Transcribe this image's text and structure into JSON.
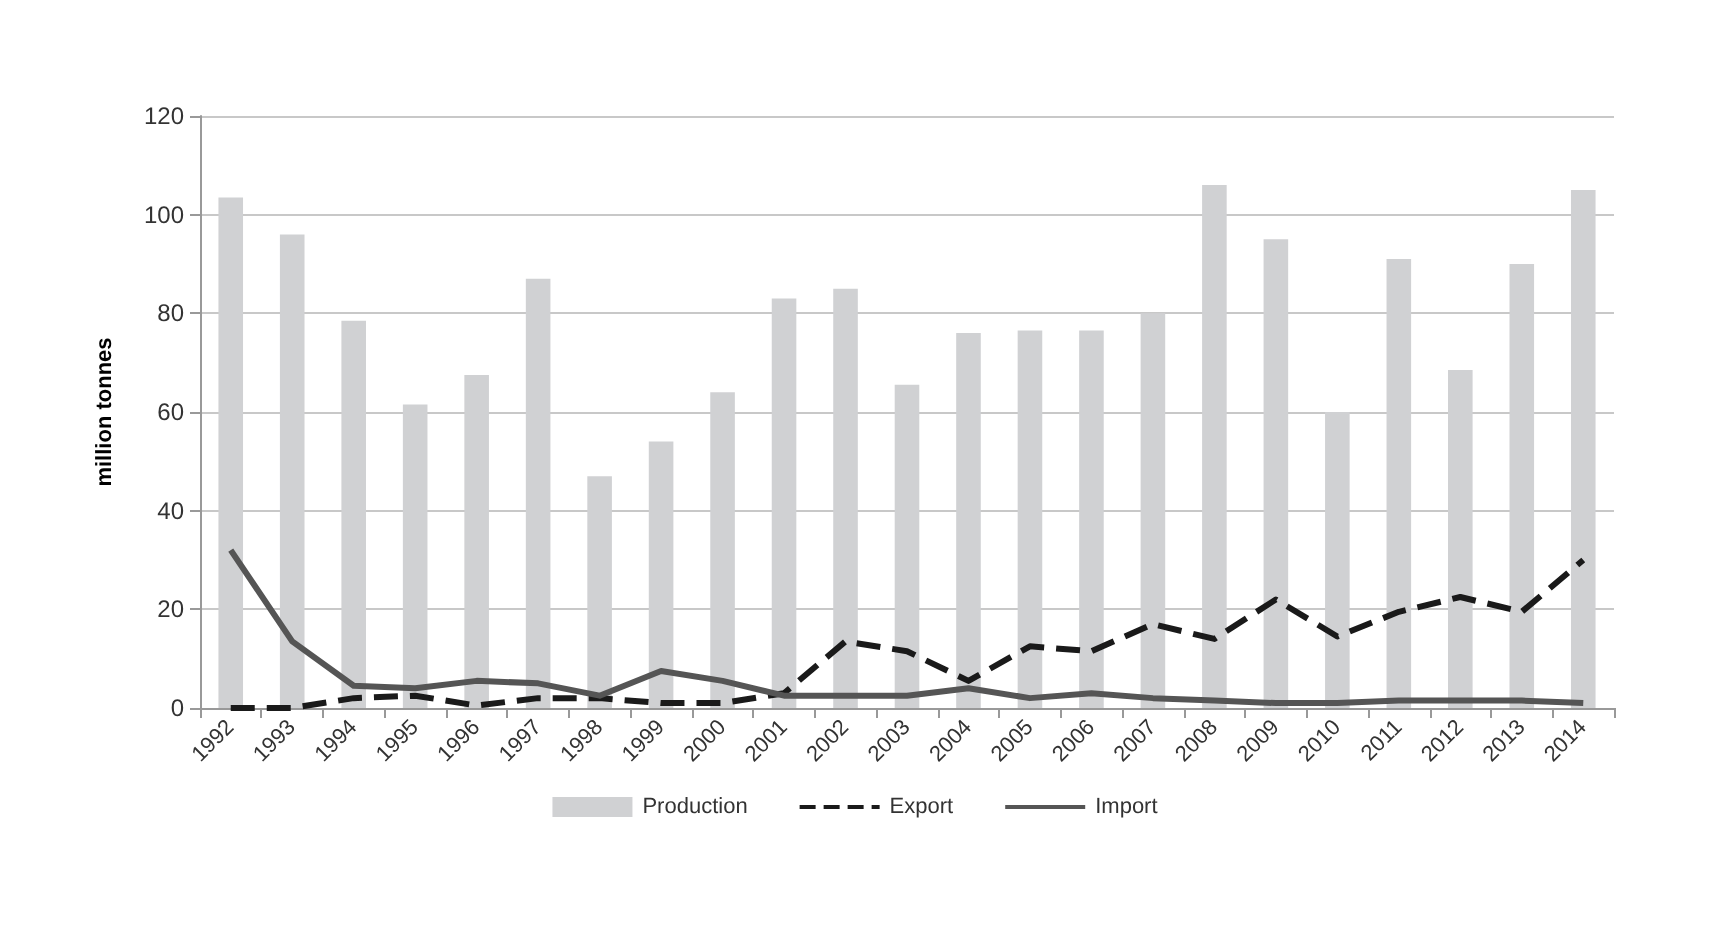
{
  "chart_data": {
    "type": "bar",
    "ylabel": "million tonnes",
    "categories": [
      "1992",
      "1993",
      "1994",
      "1995",
      "1996",
      "1997",
      "1998",
      "1999",
      "2000",
      "2001",
      "2002",
      "2003",
      "2004",
      "2005",
      "2006",
      "2007",
      "2008",
      "2009",
      "2010",
      "2011",
      "2012",
      "2013",
      "2014"
    ],
    "series": [
      {
        "name": "Production",
        "color": "#d0d1d3",
        "values": [
          103.5,
          96,
          78.5,
          61.5,
          67.5,
          87,
          47,
          54,
          64,
          83,
          85,
          65.5,
          76,
          76.5,
          76.5,
          80,
          106,
          95,
          60,
          91,
          68.5,
          90,
          105
        ]
      },
      {
        "name": "Export",
        "type": "line",
        "line_style": "dashed",
        "color": "#1a1a1a",
        "values": [
          0,
          0,
          2,
          2.5,
          0.5,
          2,
          2,
          1,
          1,
          3,
          13.5,
          11.5,
          5.5,
          12.5,
          11.5,
          17,
          14,
          22,
          14.5,
          19.5,
          22.5,
          19.5,
          30
        ]
      },
      {
        "name": "Import",
        "type": "line",
        "line_style": "solid",
        "color": "#555555",
        "values": [
          32,
          13.5,
          4.5,
          4,
          5.5,
          5,
          2.5,
          7.5,
          5.5,
          2.5,
          2.5,
          2.5,
          4,
          2,
          3,
          2,
          1.5,
          1,
          1,
          1.5,
          1.5,
          1.5,
          1
        ]
      }
    ],
    "ylim": [
      0,
      120
    ],
    "yticks": [
      0,
      20,
      40,
      60,
      80,
      100,
      120
    ],
    "grid": "y",
    "legend": "bottom",
    "marker": "none"
  }
}
